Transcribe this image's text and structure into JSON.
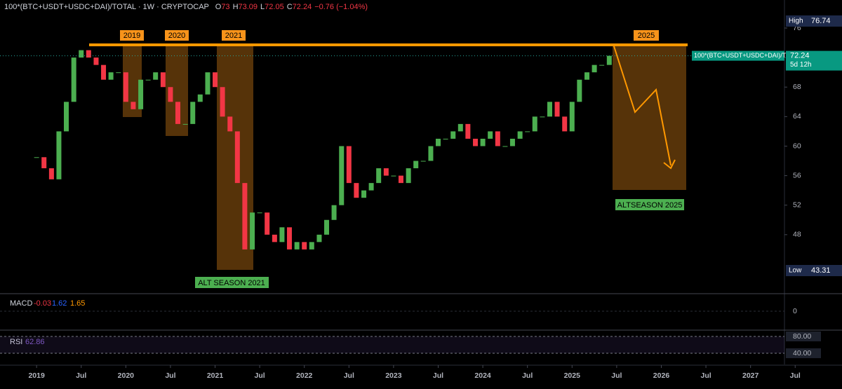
{
  "header": {
    "symbol": "100*(BTC+USDT+USDC+DAI)/TOTAL",
    "interval": "1W",
    "exchange": "CRYPTOCAP",
    "ohlc": [
      {
        "label": "O",
        "value": 73
      },
      {
        "label": "H",
        "value": 73.09
      },
      {
        "label": "L",
        "value": 72.05
      },
      {
        "label": "C",
        "value": 72.24
      }
    ],
    "change": "−0.76 (−1.04%)"
  },
  "chart_data": {
    "type": "candlestick",
    "x": [
      2019.0,
      2019.083,
      2019.167,
      2019.25,
      2019.333,
      2019.417,
      2019.5,
      2019.583,
      2019.667,
      2019.75,
      2019.833,
      2019.917,
      2020.0,
      2020.083,
      2020.167,
      2020.25,
      2020.333,
      2020.417,
      2020.5,
      2020.583,
      2020.667,
      2020.75,
      2020.833,
      2020.917,
      2021.0,
      2021.083,
      2021.167,
      2021.25,
      2021.333,
      2021.417,
      2021.5,
      2021.583,
      2021.667,
      2021.75,
      2021.833,
      2021.917,
      2022.0,
      2022.083,
      2022.167,
      2022.25,
      2022.333,
      2022.417,
      2022.5,
      2022.583,
      2022.667,
      2022.75,
      2022.833,
      2022.917,
      2023.0,
      2023.083,
      2023.167,
      2023.25,
      2023.333,
      2023.417,
      2023.5,
      2023.583,
      2023.667,
      2023.75,
      2023.833,
      2023.917,
      2024.0,
      2024.083,
      2024.167,
      2024.25,
      2024.333,
      2024.417,
      2024.5,
      2024.583,
      2024.667,
      2024.75,
      2024.833,
      2024.917,
      2025.0,
      2025.083,
      2025.167,
      2025.25,
      2025.333,
      2025.417
    ],
    "close": [
      58.5,
      57,
      55.5,
      62,
      66,
      72,
      73,
      72,
      71,
      69,
      70,
      70,
      66,
      65,
      69,
      69,
      70,
      68,
      66,
      63,
      63,
      66,
      67,
      70,
      68,
      64,
      62,
      55,
      46,
      51,
      51,
      48,
      47,
      49,
      46,
      47,
      46,
      47,
      48,
      50,
      52,
      60,
      55,
      53,
      54,
      55,
      57,
      56,
      56,
      55,
      57,
      58,
      58,
      60,
      61,
      61,
      62,
      63,
      61,
      60,
      61,
      62,
      60,
      60,
      61,
      62,
      62,
      64,
      64,
      66,
      64,
      62,
      66,
      69,
      70,
      71,
      71,
      72.24
    ],
    "up_color": "#4caf50",
    "down_color": "#f23645",
    "xlim": [
      2018.59,
      2027.38
    ],
    "xticks": [
      {
        "value": 2019,
        "label": "2019"
      },
      {
        "value": 2019.5,
        "label": "Jul"
      },
      {
        "value": 2020,
        "label": "2020"
      },
      {
        "value": 2020.5,
        "label": "Jul"
      },
      {
        "value": 2021,
        "label": "2021"
      },
      {
        "value": 2021.5,
        "label": "Jul"
      },
      {
        "value": 2022,
        "label": "2022"
      },
      {
        "value": 2022.5,
        "label": "Jul"
      },
      {
        "value": 2023,
        "label": "2023"
      },
      {
        "value": 2023.5,
        "label": "Jul"
      },
      {
        "value": 2024,
        "label": "2024"
      },
      {
        "value": 2024.5,
        "label": "Jul"
      },
      {
        "value": 2025,
        "label": "2025"
      },
      {
        "value": 2025.5,
        "label": "Jul"
      },
      {
        "value": 2026,
        "label": "2026"
      },
      {
        "value": 2026.5,
        "label": "Jul"
      },
      {
        "value": 2027,
        "label": "2027"
      },
      {
        "value": 2027.5,
        "label": "Jul"
      }
    ],
    "ylim": [
      40.1,
      79.8
    ],
    "yticks": [
      48,
      52,
      56,
      60,
      64,
      68,
      72,
      76
    ],
    "high_label": "High",
    "high": 76.74,
    "low_label": "Low",
    "low": 43.31,
    "last_label": "100*(BTC+USDT+USDC+DAI)/TOTAL",
    "last": 72.24,
    "countdown": "5d 12h"
  },
  "annotations": {
    "zones": [
      "2019",
      "2020",
      "2021",
      "2025"
    ],
    "alt2021": "ALT SEASON 2021",
    "alt2025": "ALTSEASON 2025"
  },
  "macd": {
    "title": "MACD",
    "values": [
      -0.03,
      1.62,
      1.65
    ],
    "colors": [
      "#f23645",
      "#2962ff",
      "#ff9800"
    ],
    "ylim": [
      -2.6,
      2.4
    ],
    "yticks": [
      0
    ]
  },
  "rsi": {
    "title": "RSI",
    "value": 62.86,
    "color": "#7e57c2",
    "ylim": [
      13.3,
      93.3
    ],
    "yticks": [
      {
        "value": 80,
        "label": "80.00"
      },
      {
        "value": 40,
        "label": "40.00"
      }
    ]
  }
}
